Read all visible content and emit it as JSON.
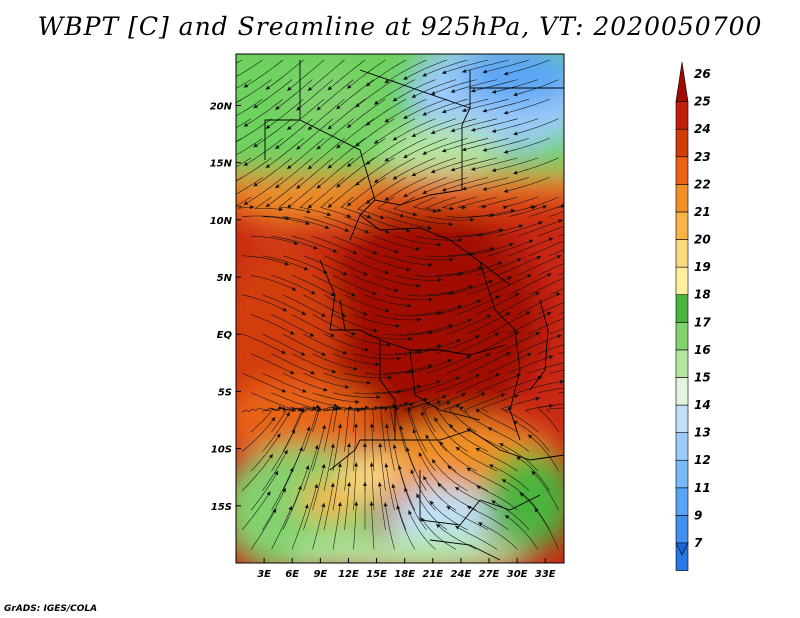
{
  "title": "WBPT [C] and Sreamline at 925hPa, VT: 2020050700",
  "credit": "GrADS: IGES/COLA",
  "map": {
    "lon_range": [
      0,
      35
    ],
    "lat_range": [
      -20,
      24.5
    ],
    "lon_ticks": [
      "3E",
      "6E",
      "9E",
      "12E",
      "15E",
      "18E",
      "21E",
      "24E",
      "27E",
      "30E",
      "33E"
    ],
    "lat_ticks": [
      "20N",
      "15N",
      "10N",
      "5N",
      "EQ",
      "5S",
      "10S",
      "15S"
    ],
    "lon_tick_values": [
      3,
      6,
      9,
      12,
      15,
      18,
      21,
      24,
      27,
      30,
      33
    ],
    "lat_tick_values": [
      20,
      15,
      10,
      5,
      0,
      -5,
      -10,
      -15
    ]
  },
  "colorbar": {
    "labels": [
      "7",
      "9",
      "11",
      "12",
      "13",
      "14",
      "15",
      "16",
      "17",
      "18",
      "19",
      "20",
      "21",
      "22",
      "23",
      "24",
      "25",
      "26"
    ],
    "colors": [
      "#1e64dc",
      "#2a78e6",
      "#4190f0",
      "#5aa5f5",
      "#78b9f8",
      "#9ccbfa",
      "#c0e0f8",
      "#e2f5e0",
      "#b4e6a0",
      "#82d26e",
      "#4bb43c",
      "#fff0a0",
      "#fbd880",
      "#f8b446",
      "#f09028",
      "#e86414",
      "#d23c0a",
      "#c01e0a",
      "#a00a00"
    ]
  }
}
